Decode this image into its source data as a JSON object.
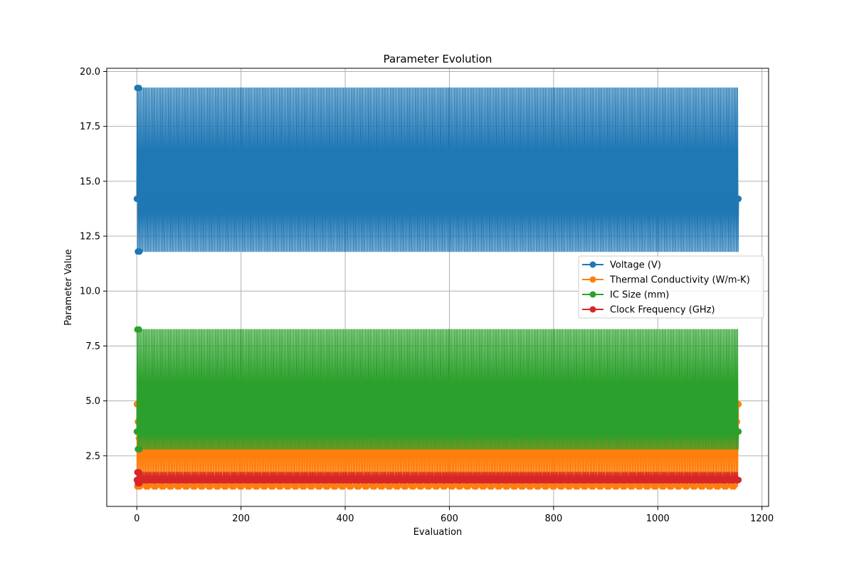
{
  "chart_data": {
    "type": "line",
    "title": "Parameter Evolution",
    "xlabel": "Evaluation",
    "ylabel": "Parameter Value",
    "xlim": [
      -57.75,
      1212.75
    ],
    "ylim": [
      0.195,
      20.145
    ],
    "xticks": [
      0,
      200,
      400,
      600,
      800,
      1000,
      1200
    ],
    "yticks": [
      2.5,
      5.0,
      7.5,
      10.0,
      12.5,
      15.0,
      17.5,
      20.0
    ],
    "ytick_labels": [
      "2.5",
      "5.0",
      "7.5",
      "10.0",
      "12.5",
      "15.0",
      "17.5",
      "20.0"
    ],
    "grid": true,
    "legend_placement": "center-right",
    "x_range": [
      0,
      1155
    ],
    "series": [
      {
        "name": "Voltage (V)",
        "color": "#1f77b4",
        "pattern": [
          14.2,
          19.25,
          11.8
        ],
        "start_end": 14.2
      },
      {
        "name": "Thermal Conductivity (W/m-K)",
        "color": "#ff7f0e",
        "pattern": [
          4.85,
          1.1,
          4.05,
          1.1,
          3.3
        ],
        "start_end": 4.85
      },
      {
        "name": "IC Size (mm)",
        "color": "#2ca02c",
        "pattern": [
          3.6,
          8.25,
          2.8
        ],
        "start_end": 3.6
      },
      {
        "name": "Clock Frequency (GHz)",
        "color": "#d62728",
        "pattern": [
          1.4,
          1.75,
          1.25
        ],
        "start_end": 1.4
      }
    ]
  }
}
